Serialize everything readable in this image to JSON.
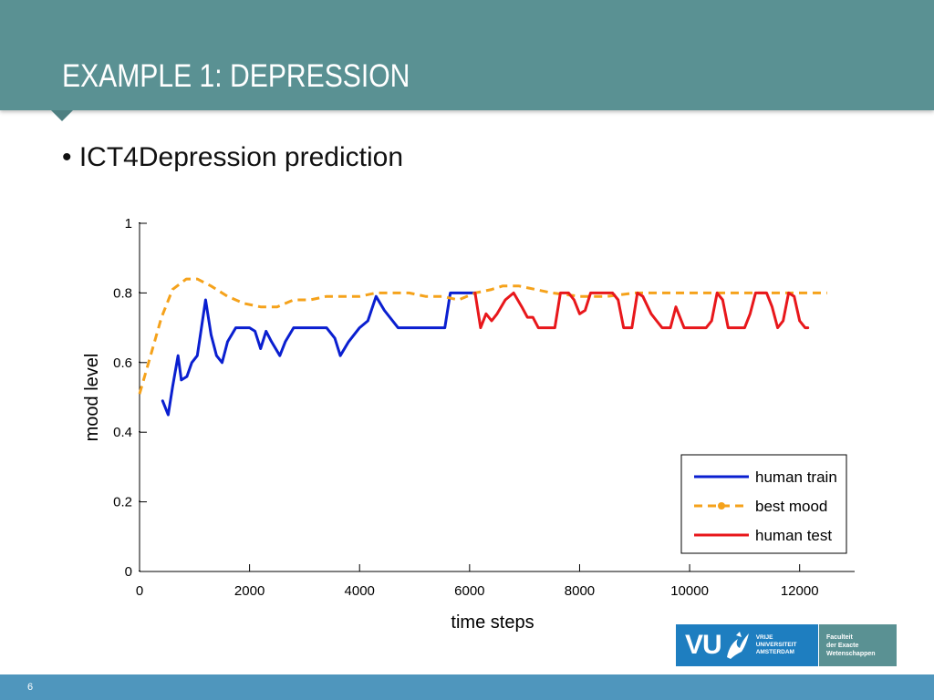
{
  "slide": {
    "title": "EXAMPLE 1: DEPRESSION",
    "bullet": "• ICT4Depression prediction",
    "page_number": "6"
  },
  "logo": {
    "mark": "VU",
    "name_lines": [
      "VRIJE",
      "UNIVERSITEIT",
      "AMSTERDAM"
    ],
    "faculty_lines": [
      "Faculteit",
      "der Exacte",
      "Wetenschappen"
    ]
  },
  "colors": {
    "title_bar": "#5a9193",
    "footer_bar": "#4f96bd",
    "human_train": "#0a1fd0",
    "best_mood": "#f5a21b",
    "human_test": "#e8171b"
  },
  "chart_data": {
    "type": "line",
    "title": "",
    "xlabel": "time steps",
    "ylabel": "mood level",
    "xlim": [
      0,
      13000
    ],
    "ylim": [
      0,
      1
    ],
    "xticks": [
      0,
      2000,
      4000,
      6000,
      8000,
      10000,
      12000
    ],
    "yticks": [
      0,
      0.2,
      0.4,
      0.6,
      0.8,
      1
    ],
    "xtick_labels": [
      "0",
      "2000",
      "4000",
      "6000",
      "8000",
      "10000",
      "12000"
    ],
    "ytick_labels": [
      "0",
      "0.2",
      "0.4",
      "0.6",
      "0.8",
      "1"
    ],
    "grid": false,
    "legend_position": "bottom-right",
    "series": [
      {
        "name": "human train",
        "style": "solid",
        "x": [
          420,
          520,
          600,
          700,
          760,
          860,
          950,
          1050,
          1200,
          1300,
          1400,
          1500,
          1600,
          1750,
          2000,
          2100,
          2200,
          2300,
          2400,
          2550,
          2650,
          2800,
          3000,
          3200,
          3400,
          3550,
          3650,
          3800,
          4000,
          4150,
          4300,
          4450,
          4700,
          5000,
          5300,
          5550,
          5650,
          6000,
          6100
        ],
        "y": [
          0.49,
          0.45,
          0.53,
          0.62,
          0.55,
          0.56,
          0.6,
          0.62,
          0.78,
          0.68,
          0.62,
          0.6,
          0.66,
          0.7,
          0.7,
          0.69,
          0.64,
          0.69,
          0.66,
          0.62,
          0.66,
          0.7,
          0.7,
          0.7,
          0.7,
          0.67,
          0.62,
          0.66,
          0.7,
          0.72,
          0.79,
          0.75,
          0.7,
          0.7,
          0.7,
          0.7,
          0.8,
          0.8,
          0.8
        ]
      },
      {
        "name": "best mood",
        "style": "dashed",
        "x": [
          0,
          200,
          400,
          600,
          850,
          1050,
          1300,
          1600,
          1900,
          2200,
          2500,
          2800,
          3100,
          3400,
          3700,
          4000,
          4300,
          4600,
          4900,
          5200,
          5500,
          5800,
          6100,
          6400,
          6600,
          6900,
          7200,
          7500,
          8000,
          8500,
          9000,
          9500,
          10000,
          10500,
          11000,
          11500,
          12000,
          12500
        ],
        "y": [
          0.51,
          0.62,
          0.73,
          0.81,
          0.84,
          0.84,
          0.82,
          0.79,
          0.77,
          0.76,
          0.76,
          0.78,
          0.78,
          0.79,
          0.79,
          0.79,
          0.8,
          0.8,
          0.8,
          0.79,
          0.79,
          0.78,
          0.8,
          0.81,
          0.82,
          0.82,
          0.81,
          0.8,
          0.79,
          0.79,
          0.8,
          0.8,
          0.8,
          0.8,
          0.8,
          0.8,
          0.8,
          0.8
        ]
      },
      {
        "name": "human test",
        "style": "solid",
        "x": [
          6100,
          6200,
          6300,
          6400,
          6500,
          6650,
          6800,
          6950,
          7050,
          7150,
          7250,
          7400,
          7550,
          7650,
          7800,
          7900,
          8000,
          8100,
          8200,
          8300,
          8400,
          8600,
          8700,
          8800,
          8950,
          9050,
          9150,
          9300,
          9400,
          9500,
          9650,
          9750,
          9900,
          10000,
          10100,
          10200,
          10300,
          10400,
          10500,
          10600,
          10700,
          10800,
          11000,
          11100,
          11200,
          11300,
          11400,
          11500,
          11600,
          11700,
          11800,
          11900,
          12000,
          12100,
          12150
        ],
        "y": [
          0.8,
          0.7,
          0.74,
          0.72,
          0.74,
          0.78,
          0.8,
          0.76,
          0.73,
          0.73,
          0.7,
          0.7,
          0.7,
          0.8,
          0.8,
          0.78,
          0.74,
          0.75,
          0.8,
          0.8,
          0.8,
          0.8,
          0.78,
          0.7,
          0.7,
          0.8,
          0.79,
          0.74,
          0.72,
          0.7,
          0.7,
          0.76,
          0.7,
          0.7,
          0.7,
          0.7,
          0.7,
          0.72,
          0.8,
          0.78,
          0.7,
          0.7,
          0.7,
          0.74,
          0.8,
          0.8,
          0.8,
          0.76,
          0.7,
          0.72,
          0.8,
          0.79,
          0.72,
          0.7,
          0.7
        ]
      }
    ]
  }
}
